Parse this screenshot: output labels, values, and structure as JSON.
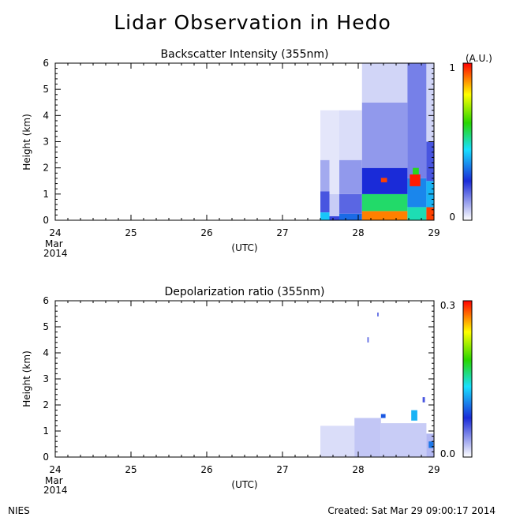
{
  "page": {
    "title": "Lidar Observation in Hedo",
    "footer_left": "NIES",
    "footer_right": "Created: Sat Mar 29 09:00:17 2014"
  },
  "colors": {
    "low": "#ffffff",
    "blue": "#1a2bd8",
    "cyan": "#19e0ff",
    "green": "#28d600",
    "yellow": "#ffff00",
    "red": "#ff0000"
  },
  "chart_data": [
    {
      "type": "heatmap",
      "title": "Backscatter Intensity (355nm)",
      "ylabel": "Height (km)",
      "xlabel": "(UTC)",
      "xlim": [
        24,
        29
      ],
      "ylim": [
        0,
        6
      ],
      "x_ticks": [
        "24",
        "25",
        "26",
        "27",
        "28",
        "29"
      ],
      "x_tick_sub": [
        "Mar",
        "2014"
      ],
      "y_ticks": [
        "0",
        "1",
        "2",
        "3",
        "4",
        "5",
        "6"
      ],
      "colorbar": {
        "min_label": "0",
        "max_label": "1",
        "unit": "(A.U.)",
        "range": [
          0,
          1
        ]
      },
      "data_start_day": 27.5,
      "cells": [
        {
          "x": [
            27.5,
            27.62
          ],
          "y": [
            0.0,
            0.3
          ],
          "value": 0.42
        },
        {
          "x": [
            27.5,
            27.62
          ],
          "y": [
            0.3,
            1.1
          ],
          "value": 0.2
        },
        {
          "x": [
            27.5,
            27.62
          ],
          "y": [
            1.1,
            2.3
          ],
          "value": 0.1
        },
        {
          "x": [
            27.5,
            27.62
          ],
          "y": [
            2.3,
            4.2
          ],
          "value": 0.03
        },
        {
          "x": [
            27.62,
            27.75
          ],
          "y": [
            0.0,
            0.15
          ],
          "value": 0.22
        },
        {
          "x": [
            27.62,
            27.75
          ],
          "y": [
            0.15,
            1.0
          ],
          "value": 0.06
        },
        {
          "x": [
            27.62,
            27.75
          ],
          "y": [
            1.0,
            4.2
          ],
          "value": 0.03
        },
        {
          "x": [
            27.75,
            28.05
          ],
          "y": [
            0.0,
            0.25
          ],
          "value": 0.32
        },
        {
          "x": [
            27.75,
            28.05
          ],
          "y": [
            0.25,
            1.0
          ],
          "value": 0.18
        },
        {
          "x": [
            27.75,
            28.05
          ],
          "y": [
            1.0,
            2.3
          ],
          "value": 0.12
        },
        {
          "x": [
            27.75,
            28.05
          ],
          "y": [
            2.3,
            4.2
          ],
          "value": 0.04
        },
        {
          "x": [
            28.05,
            28.65
          ],
          "y": [
            0.0,
            0.35
          ],
          "value": 0.9
        },
        {
          "x": [
            28.05,
            28.65
          ],
          "y": [
            0.35,
            1.0
          ],
          "value": 0.55
        },
        {
          "x": [
            28.05,
            28.65
          ],
          "y": [
            1.0,
            2.0
          ],
          "value": 0.25
        },
        {
          "x": [
            28.05,
            28.65
          ],
          "y": [
            2.0,
            4.5
          ],
          "value": 0.12
        },
        {
          "x": [
            28.05,
            28.65
          ],
          "y": [
            4.5,
            6.0
          ],
          "value": 0.05
        },
        {
          "x": [
            28.3,
            28.38
          ],
          "y": [
            1.45,
            1.62
          ],
          "value": 0.95
        },
        {
          "x": [
            28.65,
            28.9
          ],
          "y": [
            0.0,
            0.5
          ],
          "value": 0.5
        },
        {
          "x": [
            28.65,
            28.9
          ],
          "y": [
            0.5,
            1.6
          ],
          "value": 0.35
        },
        {
          "x": [
            28.65,
            28.9
          ],
          "y": [
            1.6,
            6.0
          ],
          "value": 0.15
        },
        {
          "x": [
            28.68,
            28.82
          ],
          "y": [
            1.3,
            1.75
          ],
          "value": 0.98
        },
        {
          "x": [
            28.72,
            28.8
          ],
          "y": [
            1.75,
            2.0
          ],
          "value": 0.6
        },
        {
          "x": [
            28.9,
            29.0
          ],
          "y": [
            0.0,
            0.5
          ],
          "value": 0.95
        },
        {
          "x": [
            28.9,
            29.0
          ],
          "y": [
            0.5,
            1.5
          ],
          "value": 0.4
        },
        {
          "x": [
            28.9,
            29.0
          ],
          "y": [
            1.5,
            3.0
          ],
          "value": 0.2
        },
        {
          "x": [
            28.9,
            29.0
          ],
          "y": [
            3.0,
            6.0
          ],
          "value": 0.05
        }
      ]
    },
    {
      "type": "heatmap",
      "title": "Depolarization ratio (355nm)",
      "ylabel": "Height (km)",
      "xlabel": "(UTC)",
      "xlim": [
        24,
        29
      ],
      "ylim": [
        0,
        6
      ],
      "x_ticks": [
        "24",
        "25",
        "26",
        "27",
        "28",
        "29"
      ],
      "x_tick_sub": [
        "Mar",
        "2014"
      ],
      "y_ticks": [
        "0",
        "1",
        "2",
        "3",
        "4",
        "5",
        "6"
      ],
      "colorbar": {
        "min_label": "0.0",
        "max_label": "0.3",
        "range": [
          0,
          0.3
        ]
      },
      "cells": [
        {
          "x": [
            27.5,
            27.95
          ],
          "y": [
            0.0,
            1.2
          ],
          "value": 0.012
        },
        {
          "x": [
            27.95,
            28.3
          ],
          "y": [
            0.0,
            1.5
          ],
          "value": 0.02
        },
        {
          "x": [
            28.3,
            28.9
          ],
          "y": [
            0.0,
            1.3
          ],
          "value": 0.018
        },
        {
          "x": [
            28.9,
            29.0
          ],
          "y": [
            0.0,
            0.9
          ],
          "value": 0.025
        },
        {
          "x": [
            28.3,
            28.36
          ],
          "y": [
            1.5,
            1.65
          ],
          "value": 0.09
        },
        {
          "x": [
            28.7,
            28.78
          ],
          "y": [
            1.4,
            1.8
          ],
          "value": 0.12
        },
        {
          "x": [
            28.93,
            28.99
          ],
          "y": [
            0.35,
            0.6
          ],
          "value": 0.1
        },
        {
          "x": [
            28.85,
            28.88
          ],
          "y": [
            2.1,
            2.3
          ],
          "value": 0.06
        },
        {
          "x": [
            28.12,
            28.14
          ],
          "y": [
            4.4,
            4.6
          ],
          "value": 0.05
        },
        {
          "x": [
            28.25,
            28.27
          ],
          "y": [
            5.4,
            5.55
          ],
          "value": 0.05
        }
      ]
    }
  ]
}
